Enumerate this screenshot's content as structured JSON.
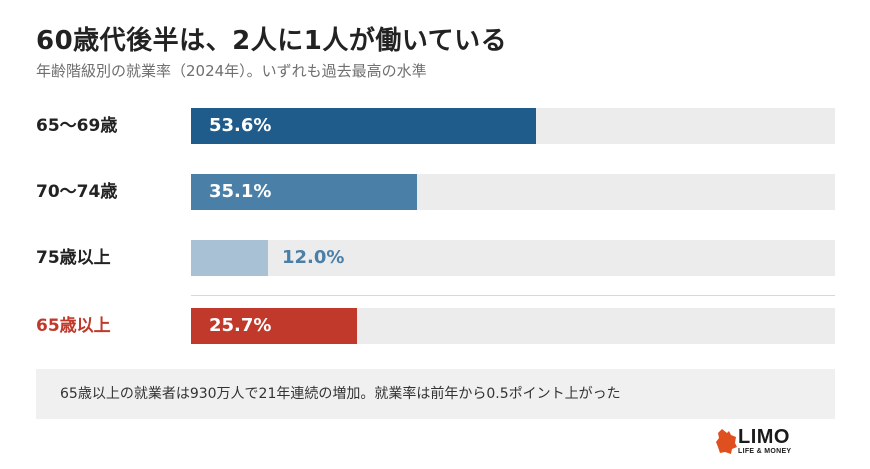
{
  "title": "60歳代後半は、2人に1人が働いている",
  "subtitle": "年齢階級別の就業率（2024年）。いずれも過去最高の水準",
  "chart_data": {
    "type": "bar",
    "orientation": "horizontal",
    "unit": "%",
    "xlim": [
      0,
      100
    ],
    "categories": [
      "65〜69歳",
      "70〜74歳",
      "75歳以上",
      "65歳以上"
    ],
    "values": [
      53.6,
      35.1,
      12.0,
      25.7
    ],
    "value_labels": [
      "53.6%",
      "35.1%",
      "12.0%",
      "25.7%"
    ],
    "bar_colors": [
      "#1f5c8b",
      "#4a7fa8",
      "#a9c1d5",
      "#c0392b"
    ],
    "label_colors": [
      "#222222",
      "#222222",
      "#222222",
      "#c0392b"
    ],
    "value_label_colors": [
      "#ffffff",
      "#ffffff",
      "#4a7fa8",
      "#ffffff"
    ],
    "value_label_inside": [
      true,
      true,
      false,
      true
    ],
    "track_color": "#ececec",
    "grid": false,
    "legend": "none"
  },
  "note": "65歳以上の就業者は930万人で21年連続の増加。就業率は前年から0.5ポイント上がった",
  "logo": {
    "text": "LIMO",
    "subtext": "LIFE & MONEY",
    "accent_color": "#e0501e"
  }
}
